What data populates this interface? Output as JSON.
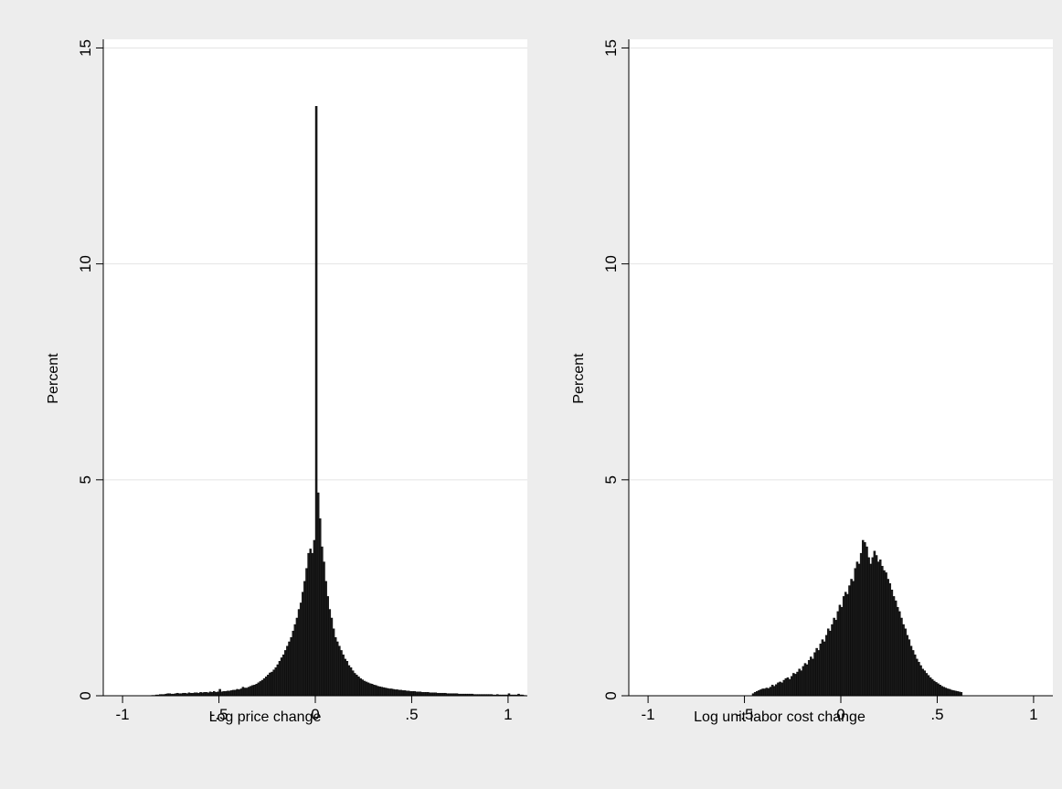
{
  "chart_data": [
    {
      "type": "histogram",
      "xlabel": "Log price change",
      "ylabel": "Percent",
      "xlim": [
        -1.1,
        1.1
      ],
      "ylim": [
        0,
        15.2
      ],
      "xticks": [
        "-1",
        "-.5",
        "0",
        ".5",
        "1"
      ],
      "yticks": [
        "0",
        "5",
        "10",
        "15"
      ],
      "grid": "horizontal",
      "bins": {
        "start": -0.85,
        "width": 0.01,
        "values": [
          0.01,
          0.01,
          0.02,
          0.02,
          0.03,
          0.03,
          0.03,
          0.04,
          0.05,
          0.05,
          0.04,
          0.04,
          0.05,
          0.06,
          0.05,
          0.05,
          0.06,
          0.06,
          0.05,
          0.07,
          0.06,
          0.06,
          0.07,
          0.07,
          0.06,
          0.08,
          0.07,
          0.08,
          0.08,
          0.07,
          0.09,
          0.08,
          0.1,
          0.08,
          0.09,
          0.15,
          0.09,
          0.1,
          0.1,
          0.11,
          0.11,
          0.12,
          0.13,
          0.13,
          0.15,
          0.14,
          0.16,
          0.2,
          0.18,
          0.18,
          0.2,
          0.22,
          0.24,
          0.25,
          0.27,
          0.3,
          0.33,
          0.36,
          0.4,
          0.44,
          0.48,
          0.53,
          0.55,
          0.6,
          0.65,
          0.72,
          0.8,
          0.88,
          0.95,
          1.05,
          1.15,
          1.25,
          1.35,
          1.5,
          1.65,
          1.8,
          2.0,
          2.15,
          2.4,
          2.65,
          2.95,
          3.3,
          3.4,
          3.3,
          3.6,
          13.65,
          4.7,
          4.1,
          3.45,
          3.1,
          2.65,
          2.3,
          2.0,
          1.8,
          1.55,
          1.35,
          1.25,
          1.15,
          1.05,
          0.95,
          0.85,
          0.8,
          0.7,
          0.65,
          0.58,
          0.52,
          0.48,
          0.44,
          0.4,
          0.37,
          0.34,
          0.32,
          0.3,
          0.28,
          0.27,
          0.25,
          0.24,
          0.22,
          0.21,
          0.2,
          0.19,
          0.18,
          0.17,
          0.16,
          0.16,
          0.15,
          0.14,
          0.14,
          0.13,
          0.13,
          0.12,
          0.12,
          0.11,
          0.11,
          0.1,
          0.1,
          0.1,
          0.09,
          0.09,
          0.09,
          0.08,
          0.08,
          0.08,
          0.08,
          0.07,
          0.07,
          0.07,
          0.07,
          0.06,
          0.06,
          0.06,
          0.06,
          0.06,
          0.05,
          0.05,
          0.05,
          0.05,
          0.05,
          0.05,
          0.04,
          0.04,
          0.04,
          0.04,
          0.04,
          0.04,
          0.04,
          0.04,
          0.03,
          0.03,
          0.03,
          0.03,
          0.03,
          0.03,
          0.03,
          0.03,
          0.03,
          0.03,
          0.02,
          0.02,
          0.03,
          0.02,
          0.02,
          0.02,
          0.02,
          0.02,
          0.05,
          0.02,
          0.02,
          0.02,
          0.02,
          0.04,
          0.02,
          0.02,
          0.01
        ]
      }
    },
    {
      "type": "histogram",
      "xlabel": "Log unit labor cost change",
      "ylabel": "Percent",
      "xlim": [
        -1.1,
        1.1
      ],
      "ylim": [
        0,
        15.2
      ],
      "xticks": [
        "-1",
        "-.5",
        "0",
        ".5",
        "1"
      ],
      "yticks": [
        "0",
        "5",
        "10",
        "15"
      ],
      "grid": "horizontal",
      "bins": {
        "start": -0.46,
        "width": 0.01,
        "values": [
          0.05,
          0.08,
          0.1,
          0.12,
          0.14,
          0.16,
          0.16,
          0.18,
          0.17,
          0.2,
          0.25,
          0.22,
          0.26,
          0.3,
          0.32,
          0.3,
          0.36,
          0.4,
          0.42,
          0.38,
          0.45,
          0.52,
          0.5,
          0.55,
          0.62,
          0.58,
          0.68,
          0.75,
          0.72,
          0.82,
          0.9,
          0.85,
          1.0,
          1.1,
          1.05,
          1.2,
          1.3,
          1.25,
          1.4,
          1.55,
          1.5,
          1.65,
          1.8,
          1.75,
          1.95,
          2.1,
          2.05,
          2.3,
          2.4,
          2.35,
          2.55,
          2.7,
          2.65,
          2.95,
          3.1,
          3.05,
          3.3,
          3.6,
          3.55,
          3.45,
          3.2,
          3.05,
          3.2,
          3.35,
          3.25,
          3.1,
          3.15,
          3.0,
          2.9,
          2.85,
          2.7,
          2.6,
          2.45,
          2.3,
          2.2,
          2.05,
          1.95,
          1.8,
          1.65,
          1.55,
          1.4,
          1.3,
          1.15,
          1.05,
          0.95,
          0.85,
          0.78,
          0.7,
          0.62,
          0.58,
          0.52,
          0.47,
          0.42,
          0.38,
          0.34,
          0.31,
          0.28,
          0.25,
          0.22,
          0.2,
          0.18,
          0.16,
          0.15,
          0.13,
          0.12,
          0.11,
          0.1,
          0.09,
          0.08
        ]
      }
    }
  ]
}
